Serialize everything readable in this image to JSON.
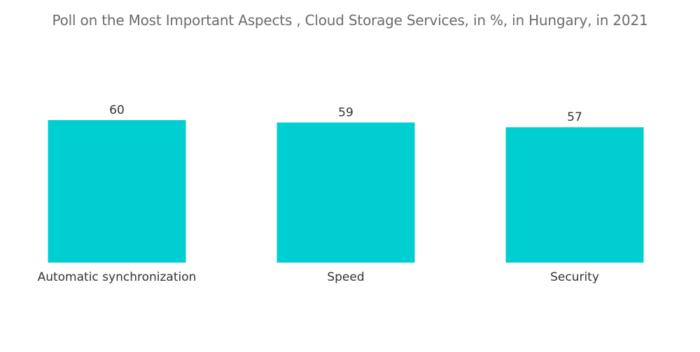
{
  "chart_data": {
    "type": "bar",
    "title": "Poll on the Most Important Aspects , Cloud Storage Services, in %, in Hungary, in 2021",
    "categories": [
      "Automatic synchronization",
      "Speed",
      "Security"
    ],
    "values": [
      60,
      59,
      57
    ],
    "data_labels": [
      "60",
      "59",
      "57"
    ],
    "bar_color": "#00cfd1",
    "xlabel": "",
    "ylabel": "",
    "grid": false,
    "legend": "none"
  }
}
